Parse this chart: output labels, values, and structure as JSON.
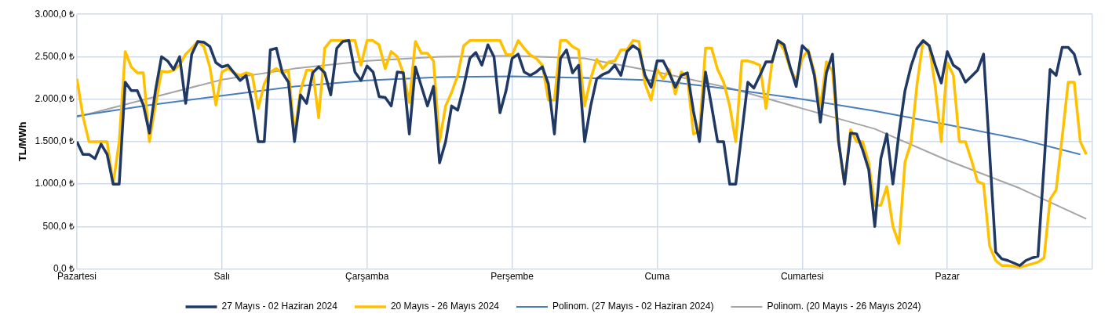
{
  "chart_data": {
    "type": "line",
    "ylabel": "TL/MWh",
    "categories": [
      "Pazartesi",
      null,
      null,
      null,
      null,
      null,
      null,
      null,
      null,
      null,
      null,
      null,
      null,
      null,
      null,
      null,
      null,
      null,
      null,
      null,
      null,
      null,
      null,
      null,
      "Salı",
      null,
      null,
      null,
      null,
      null,
      null,
      null,
      null,
      null,
      null,
      null,
      null,
      null,
      null,
      null,
      null,
      null,
      null,
      null,
      null,
      null,
      null,
      null,
      "Çarşamba",
      null,
      null,
      null,
      null,
      null,
      null,
      null,
      null,
      null,
      null,
      null,
      null,
      null,
      null,
      null,
      null,
      null,
      null,
      null,
      null,
      null,
      null,
      null,
      "Perşembe",
      null,
      null,
      null,
      null,
      null,
      null,
      null,
      null,
      null,
      null,
      null,
      null,
      null,
      null,
      null,
      null,
      null,
      null,
      null,
      null,
      null,
      null,
      null,
      "Cuma",
      null,
      null,
      null,
      null,
      null,
      null,
      null,
      null,
      null,
      null,
      null,
      null,
      null,
      null,
      null,
      null,
      null,
      null,
      null,
      null,
      null,
      null,
      null,
      "Cumartesi",
      null,
      null,
      null,
      null,
      null,
      null,
      null,
      null,
      null,
      null,
      null,
      null,
      null,
      null,
      null,
      null,
      null,
      null,
      null,
      null,
      null,
      null,
      null,
      "Pazar",
      null,
      null,
      null,
      null,
      null,
      null,
      null,
      null,
      null,
      null,
      null,
      null,
      null,
      null,
      null,
      null,
      null,
      null,
      null,
      null,
      null,
      null,
      null
    ],
    "series": [
      {
        "name": "27 Mayıs - 02 Haziran 2024",
        "color": "#1f3864",
        "values": [
          1500,
          1350,
          1350,
          1300,
          1470,
          1350,
          1000,
          1000,
          2200,
          2100,
          2100,
          1930,
          1600,
          2100,
          2500,
          2450,
          2350,
          2500,
          1950,
          2530,
          2680,
          2670,
          2620,
          2430,
          2380,
          2400,
          2310,
          2220,
          2280,
          1950,
          1500,
          1500,
          2580,
          2600,
          2310,
          2200,
          1500,
          2050,
          1950,
          2310,
          2380,
          2310,
          2050,
          2600,
          2680,
          2690,
          2320,
          2220,
          2390,
          2320,
          2030,
          2020,
          1920,
          2320,
          2310,
          1590,
          2380,
          2150,
          1920,
          2150,
          1250,
          1500,
          1920,
          1870,
          2150,
          2480,
          2550,
          2400,
          2640,
          2500,
          1840,
          2100,
          2480,
          2530,
          2320,
          2280,
          2320,
          2380,
          2180,
          1590,
          2480,
          2580,
          2310,
          2400,
          1500,
          1920,
          2240,
          2290,
          2320,
          2400,
          2280,
          2560,
          2630,
          2580,
          2280,
          2140,
          2450,
          2450,
          2310,
          2140,
          2280,
          2310,
          1860,
          1500,
          2320,
          1920,
          1500,
          1500,
          1000,
          1000,
          1600,
          2200,
          2130,
          2280,
          2440,
          2440,
          2690,
          2640,
          2380,
          2150,
          2630,
          2560,
          2280,
          1730,
          2310,
          2530,
          1510,
          1000,
          1600,
          1590,
          1400,
          1170,
          500,
          1300,
          1590,
          1000,
          1600,
          2100,
          2390,
          2600,
          2690,
          2630,
          2400,
          2190,
          2560,
          2400,
          2350,
          2200,
          2270,
          2340,
          2530,
          1370,
          200,
          120,
          100,
          70,
          40,
          100,
          130,
          150,
          1220,
          2350,
          2280,
          2610,
          2610,
          2530,
          2280,
          null
        ]
      },
      {
        "name": "20 Mayıs - 26 Mayıs 2024",
        "color": "#ffc000",
        "values": [
          2240,
          1800,
          1500,
          1500,
          1500,
          1500,
          1000,
          1500,
          2560,
          2380,
          2310,
          2310,
          1500,
          1930,
          2330,
          2320,
          2340,
          2400,
          2530,
          2600,
          2680,
          2620,
          2380,
          1930,
          2320,
          2360,
          2310,
          2280,
          2310,
          2290,
          1890,
          2180,
          2320,
          2360,
          2310,
          2340,
          1590,
          2100,
          2340,
          2340,
          1780,
          2600,
          2690,
          2690,
          2690,
          2690,
          2690,
          2400,
          2690,
          2690,
          2640,
          2360,
          2560,
          2500,
          2310,
          1960,
          2680,
          2540,
          2540,
          2450,
          1500,
          1920,
          2080,
          2280,
          2630,
          2690,
          2690,
          2690,
          2690,
          2690,
          2690,
          2530,
          2520,
          2690,
          2600,
          2520,
          2480,
          2400,
          1990,
          1990,
          2690,
          2690,
          2620,
          2580,
          1920,
          2240,
          2470,
          2360,
          2440,
          2450,
          2580,
          2580,
          2690,
          2680,
          2180,
          1990,
          2350,
          2240,
          2350,
          2060,
          2320,
          2260,
          1590,
          1620,
          2600,
          2600,
          2350,
          2200,
          1920,
          1500,
          2450,
          2450,
          2430,
          2400,
          1890,
          2430,
          2690,
          2580,
          2360,
          2220,
          2480,
          2580,
          2320,
          1900,
          2440,
          2330,
          1500,
          1000,
          1640,
          1500,
          1500,
          1250,
          750,
          750,
          970,
          500,
          300,
          1260,
          1490,
          2180,
          2690,
          2630,
          2150,
          1500,
          2430,
          2280,
          1500,
          1500,
          1280,
          1030,
          1000,
          270,
          100,
          40,
          40,
          30,
          20,
          40,
          60,
          80,
          130,
          820,
          930,
          1550,
          2200,
          2200,
          1500,
          1350
        ]
      },
      {
        "name": "Polinom. (27 Mayıs - 02 Haziran 2024)",
        "type": "line",
        "color": "#4a7ebb",
        "values": [
          1800,
          null,
          null,
          null,
          null,
          null,
          null,
          null,
          null,
          null,
          null,
          null,
          1930,
          null,
          null,
          null,
          null,
          null,
          null,
          null,
          null,
          null,
          null,
          null,
          2040,
          null,
          null,
          null,
          null,
          null,
          null,
          null,
          null,
          null,
          null,
          null,
          2150,
          null,
          null,
          null,
          null,
          null,
          null,
          null,
          null,
          null,
          null,
          null,
          2220,
          null,
          null,
          null,
          null,
          null,
          null,
          null,
          null,
          null,
          null,
          null,
          2260,
          null,
          null,
          null,
          null,
          null,
          null,
          null,
          null,
          null,
          null,
          null,
          2270,
          null,
          null,
          null,
          null,
          null,
          null,
          null,
          null,
          null,
          null,
          null,
          2250,
          null,
          null,
          null,
          null,
          null,
          null,
          null,
          null,
          null,
          null,
          null,
          2220,
          null,
          null,
          null,
          null,
          null,
          null,
          null,
          null,
          null,
          null,
          null,
          2120,
          null,
          null,
          null,
          null,
          null,
          null,
          null,
          null,
          null,
          null,
          null,
          2000,
          null,
          null,
          null,
          null,
          null,
          null,
          null,
          null,
          null,
          null,
          null,
          1860,
          null,
          null,
          null,
          null,
          null,
          null,
          null,
          null,
          null,
          null,
          null,
          1700,
          null,
          null,
          null,
          null,
          null,
          null,
          null,
          null,
          null,
          null,
          null,
          1530,
          null,
          null,
          null,
          null,
          null,
          null,
          null,
          null,
          null,
          1350,
          null
        ]
      },
      {
        "name": "Polinom. (20 Mayıs - 26 Mayıs 2024)",
        "type": "line",
        "color": "#a5a5a5",
        "values": [
          1790,
          null,
          null,
          null,
          null,
          null,
          null,
          null,
          null,
          null,
          null,
          null,
          2010,
          null,
          null,
          null,
          null,
          null,
          null,
          null,
          null,
          null,
          null,
          null,
          2230,
          null,
          null,
          null,
          null,
          null,
          null,
          null,
          null,
          null,
          null,
          null,
          2360,
          null,
          null,
          null,
          null,
          null,
          null,
          null,
          null,
          null,
          null,
          null,
          2450,
          null,
          null,
          null,
          null,
          null,
          null,
          null,
          null,
          null,
          null,
          null,
          2500,
          null,
          null,
          null,
          null,
          null,
          null,
          null,
          null,
          null,
          null,
          null,
          2510,
          null,
          null,
          null,
          null,
          null,
          null,
          null,
          null,
          null,
          null,
          null,
          2480,
          null,
          null,
          null,
          null,
          null,
          null,
          null,
          null,
          null,
          null,
          null,
          2320,
          null,
          null,
          null,
          null,
          null,
          null,
          null,
          null,
          null,
          null,
          null,
          2130,
          null,
          null,
          null,
          null,
          null,
          null,
          null,
          null,
          null,
          null,
          null,
          1890,
          null,
          null,
          null,
          null,
          null,
          null,
          null,
          null,
          null,
          null,
          null,
          1650,
          null,
          null,
          null,
          null,
          null,
          null,
          null,
          null,
          null,
          null,
          null,
          1280,
          null,
          null,
          null,
          null,
          null,
          null,
          null,
          null,
          null,
          null,
          null,
          950,
          null,
          null,
          null,
          null,
          null,
          null,
          null,
          null,
          null,
          null,
          590
        ]
      }
    ],
    "ylim": [
      0,
      3000
    ],
    "yticks": [
      {
        "value": 0,
        "label": "0,0 ₺"
      },
      {
        "value": 500,
        "label": "500,0 ₺"
      },
      {
        "value": 1000,
        "label": "1.000,0 ₺"
      },
      {
        "value": 1500,
        "label": "1.500,0 ₺"
      },
      {
        "value": 2000,
        "label": "2.000,0 ₺"
      },
      {
        "value": 2500,
        "label": "2.500,0 ₺"
      },
      {
        "value": 3000,
        "label": "3.000,0 ₺"
      }
    ],
    "grid": true,
    "legend": "bottom",
    "marker": "none",
    "line_style": "solid"
  }
}
